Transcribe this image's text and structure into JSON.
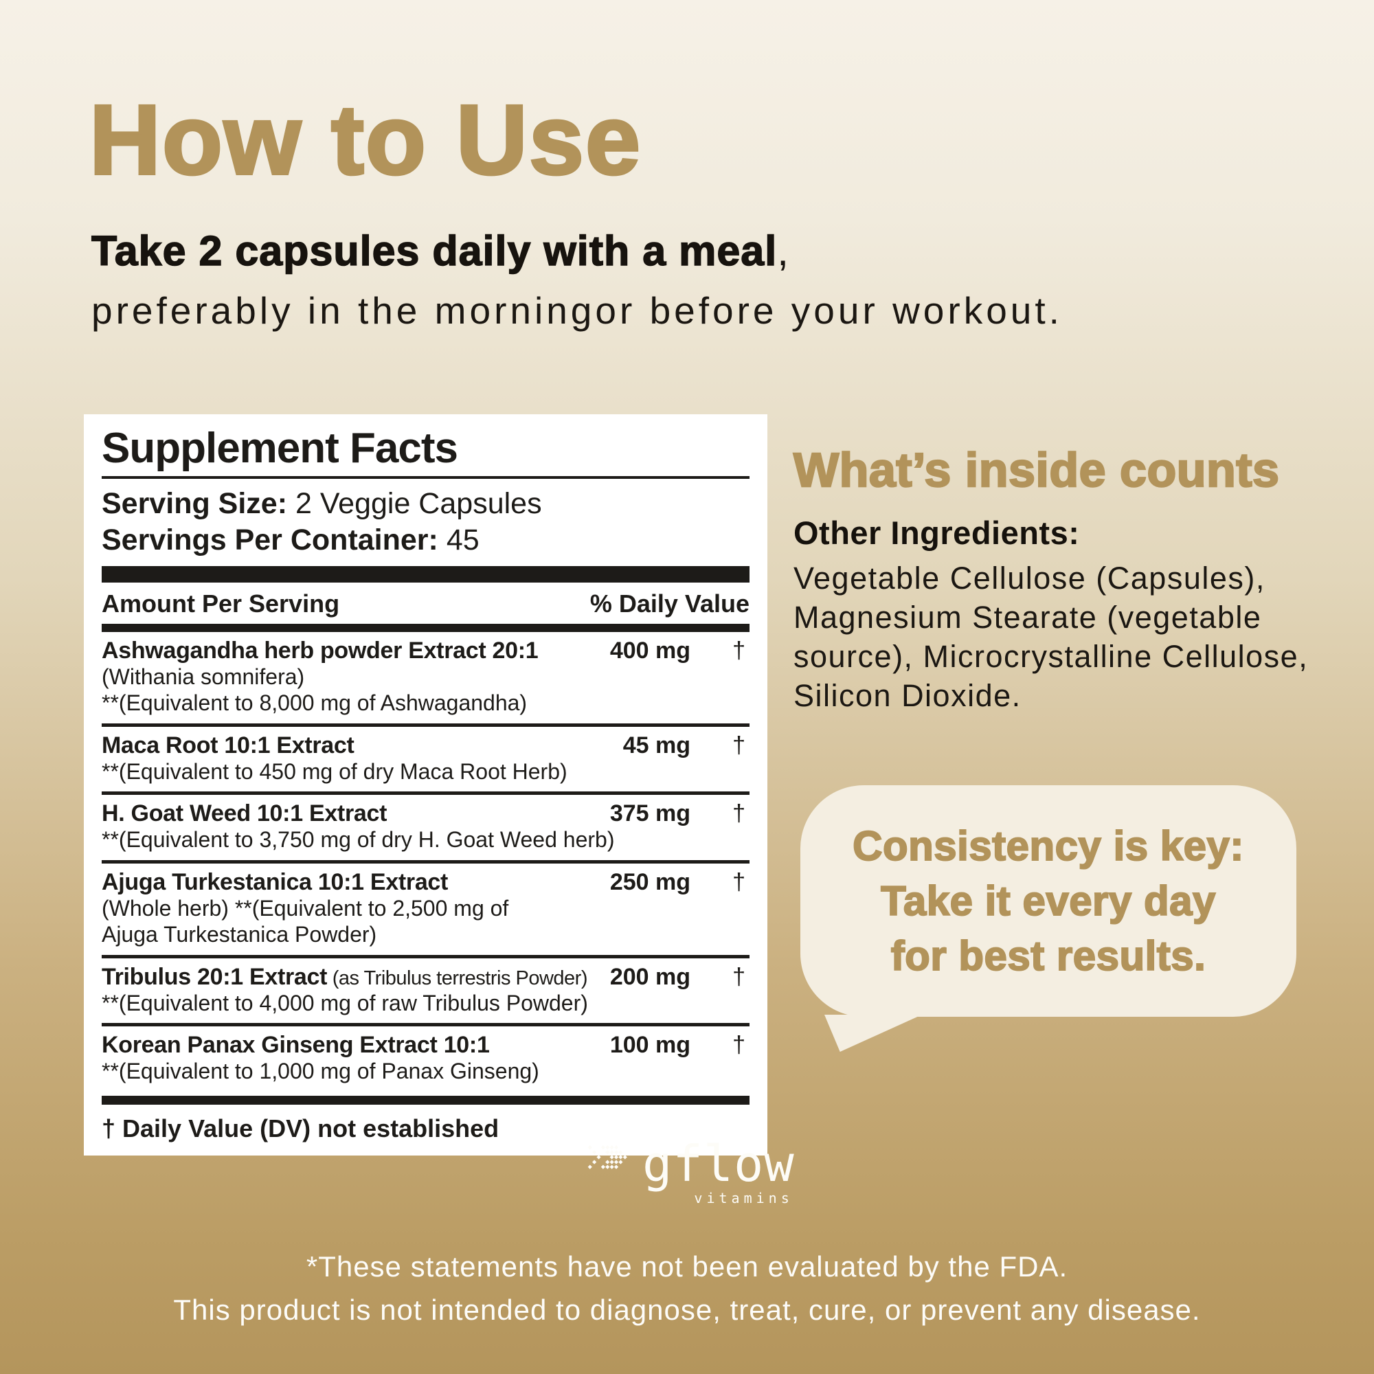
{
  "hero": {
    "title": "How to Use",
    "dose_bold": "Take 2 capsules daily with a meal",
    "dose_comma": ",",
    "dose_line2": "preferably in the morningor before your workout."
  },
  "facts": {
    "title": "Supplement Facts",
    "serving_size_label": "Serving Size:",
    "serving_size_value": "2 Veggie Capsules",
    "servings_label": "Servings Per Container:",
    "servings_value": "45",
    "col_amount": "Amount Per Serving",
    "col_dv": "% Daily Value",
    "rows": [
      {
        "name": "Ashwagandha herb powder Extract 20:1",
        "note": "",
        "amount": "400 mg",
        "dv": "†",
        "subs": [
          "(Withania somnifera)",
          "**(Equivalent to 8,000 mg of Ashwagandha)"
        ]
      },
      {
        "name": "Maca Root 10:1 Extract",
        "note": "",
        "amount": "45 mg",
        "dv": "†",
        "subs": [
          "**(Equivalent to 450 mg of dry Maca Root Herb)"
        ]
      },
      {
        "name": "H. Goat Weed 10:1 Extract",
        "note": "",
        "amount": "375 mg",
        "dv": "†",
        "subs": [
          "**(Equivalent to 3,750 mg of dry H. Goat Weed herb)"
        ]
      },
      {
        "name": "Ajuga Turkestanica 10:1 Extract",
        "note": "",
        "amount": "250 mg",
        "dv": "†",
        "subs": [
          "(Whole herb) **(Equivalent to 2,500 mg of",
          "Ajuga Turkestanica Powder)"
        ]
      },
      {
        "name": "Tribulus 20:1 Extract",
        "note": "(as Tribulus terrestris Powder)",
        "amount": "200 mg",
        "dv": "†",
        "subs": [
          "**(Equivalent to 4,000 mg of raw Tribulus Powder)"
        ]
      },
      {
        "name": "Korean Panax Ginseng Extract 10:1",
        "note": "",
        "amount": "100 mg",
        "dv": "†",
        "subs": [
          "**(Equivalent to 1,000 mg of Panax Ginseng)"
        ]
      }
    ],
    "footnote": "† Daily Value (DV) not established"
  },
  "inside": {
    "heading": "What’s inside counts",
    "other_label": "Other Ingredients:",
    "other_lines": [
      "Vegetable Cellulose (Capsules),",
      "Magnesium Stearate (vegetable",
      "source), Microcrystalline Cellulose,",
      "Silicon Dioxide."
    ]
  },
  "bubble": {
    "lines": [
      "Consistency is key:",
      "Take it every day",
      "for best results."
    ]
  },
  "logo": {
    "name": "gflow",
    "sub": "vitamins",
    "icon": "diamond-chevron-right-icon"
  },
  "disclaimer": {
    "lines": [
      "*These statements have not been evaluated by the FDA.",
      "This product is not intended to diagnose, treat, cure, or prevent any disease."
    ]
  },
  "colors": {
    "gold": "#b2935a",
    "background_top": "#f6f1e7",
    "background_bottom": "#b4955c",
    "bubble_fill": "#f4eee1",
    "panel_background": "#ffffff",
    "text_black": "#1d1b18",
    "text_white": "#fdfcf8"
  }
}
